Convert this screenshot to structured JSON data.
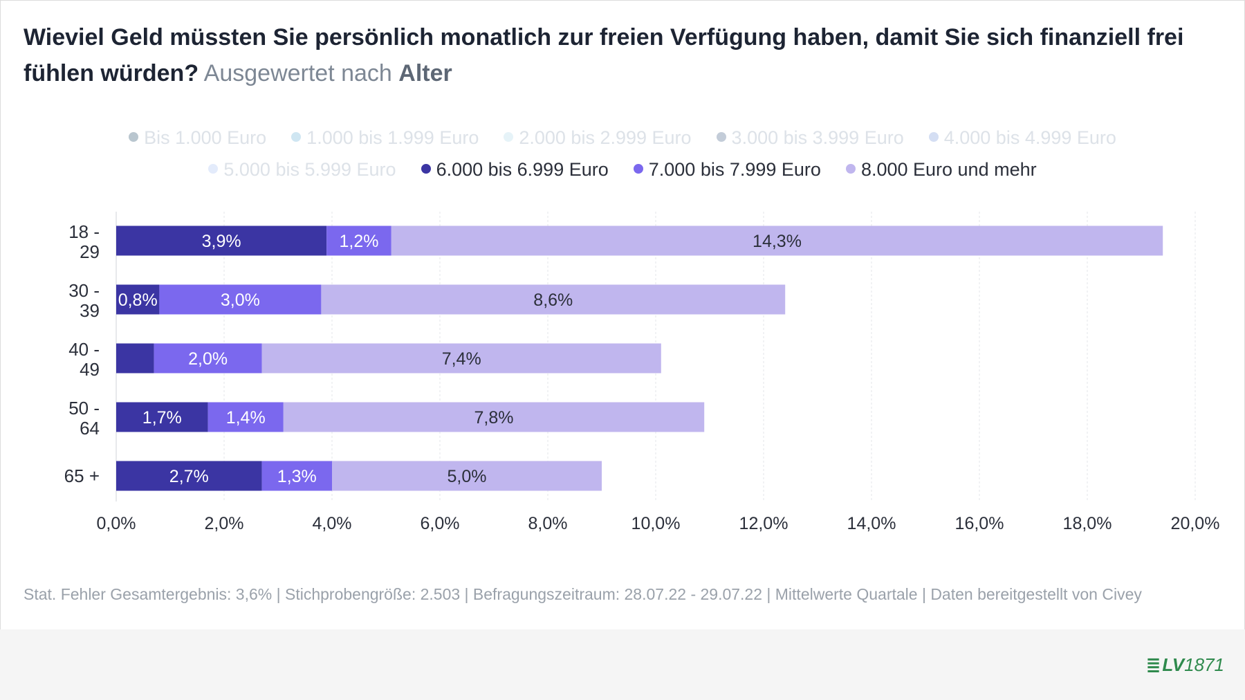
{
  "title": {
    "main": "Wieviel Geld müssten Sie persönlich monatlich zur freien Verfügung haben, damit Sie sich finanziell frei fühlen würden?",
    "sub_prefix": "Ausgewertet nach",
    "sub_strong": "Alter"
  },
  "legend": [
    {
      "label": "Bis 1.000 Euro",
      "color": "#b9c6cf",
      "faded": true
    },
    {
      "label": "1.000 bis 1.999 Euro",
      "color": "#cfe6f2",
      "faded": true
    },
    {
      "label": "2.000 bis 2.999 Euro",
      "color": "#e6f3f8",
      "faded": true
    },
    {
      "label": "3.000 bis 3.999 Euro",
      "color": "#c3ccd8",
      "faded": true
    },
    {
      "label": "4.000 bis 4.999 Euro",
      "color": "#d4def3",
      "faded": true
    },
    {
      "label": "5.000 bis 5.999 Euro",
      "color": "#e3ebfb",
      "faded": true
    },
    {
      "label": "6.000 bis 6.999 Euro",
      "color": "#3b35a3",
      "faded": false
    },
    {
      "label": "7.000 bis 7.999 Euro",
      "color": "#7b68ee",
      "faded": false
    },
    {
      "label": "8.000 Euro und mehr",
      "color": "#c0b6ee",
      "faded": false
    }
  ],
  "chart_data": {
    "type": "bar",
    "orientation": "horizontal",
    "stacked": true,
    "categories": [
      [
        "18 -",
        "29"
      ],
      [
        "30 -",
        "39"
      ],
      [
        "40 -",
        "49"
      ],
      [
        "50 -",
        "64"
      ],
      [
        "65 +"
      ]
    ],
    "series": [
      {
        "name": "6.000 bis 6.999 Euro",
        "color": "#3b35a3",
        "label_color": "#ffffff",
        "values": [
          3.9,
          0.8,
          0.7,
          1.7,
          2.7
        ],
        "labels": [
          "3,9%",
          "0,8%",
          "",
          "1,7%",
          "2,7%"
        ]
      },
      {
        "name": "7.000 bis 7.999 Euro",
        "color": "#7b68ee",
        "label_color": "#ffffff",
        "values": [
          1.2,
          3.0,
          2.0,
          1.4,
          1.3
        ],
        "labels": [
          "1,2%",
          "3,0%",
          "2,0%",
          "1,4%",
          "1,3%"
        ]
      },
      {
        "name": "8.000 Euro und mehr",
        "color": "#c0b6ee",
        "label_color": "#2b2f3a",
        "values": [
          14.3,
          8.6,
          7.4,
          7.8,
          5.0
        ],
        "labels": [
          "14,3%",
          "8,6%",
          "7,4%",
          "7,8%",
          "5,0%"
        ]
      }
    ],
    "xlim": [
      0,
      20
    ],
    "xticks": [
      "0,0%",
      "2,0%",
      "4,0%",
      "6,0%",
      "8,0%",
      "10,0%",
      "12,0%",
      "14,0%",
      "16,0%",
      "18,0%",
      "20,0%"
    ],
    "grid": true,
    "legend_position": "top"
  },
  "footer": {
    "note": "Stat. Fehler Gesamtergebnis: 3,6% | Stichprobengröße: 2.503 | Befragungszeitraum: 28.07.22 - 29.07.22 | Mittelwerte Quartale | Daten bereitgestellt von Civey",
    "logo_mark": "≣",
    "logo_text": "LV",
    "logo_num": "1871"
  }
}
